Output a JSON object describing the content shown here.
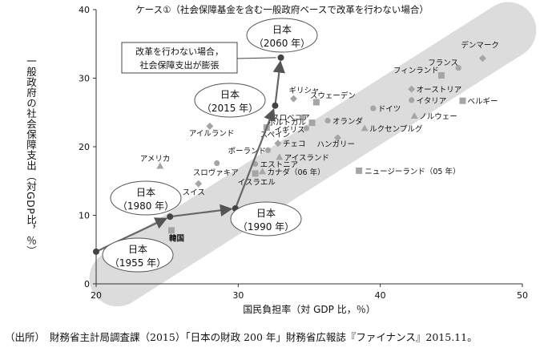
{
  "chart_data": {
    "type": "scatter",
    "title": "ケース①（社会保障基金を含む一般政府ベースで改革を行わない場合）",
    "xlabel": "国民負担率（対 GDP 比，％）",
    "ylabel": "一般政府の社会保障支出（対GDP比，％）",
    "xlim": [
      20,
      50
    ],
    "ylim": [
      0,
      40
    ],
    "x_ticks": [
      "20",
      "30",
      "40",
      "50"
    ],
    "y_ticks": [
      "0",
      "10",
      "20",
      "30",
      "40"
    ],
    "countries": [
      {
        "label": "デンマーク",
        "x": 47.2,
        "y": 32.9,
        "marker": "diamond"
      },
      {
        "label": "フランス",
        "x": 45.5,
        "y": 31.5,
        "marker": "circle"
      },
      {
        "label": "フィンランド",
        "x": 44.3,
        "y": 30.4,
        "marker": "square"
      },
      {
        "label": "オーストリア",
        "x": 42.2,
        "y": 28.4,
        "marker": "diamond"
      },
      {
        "label": "イタリア",
        "x": 42.2,
        "y": 26.8,
        "marker": "circle"
      },
      {
        "label": "ベルギー",
        "x": 45.8,
        "y": 26.7,
        "marker": "square"
      },
      {
        "label": "ノルウェー",
        "x": 42.4,
        "y": 24.5,
        "marker": "triangle"
      },
      {
        "label": "スウェーデン",
        "x": 35.5,
        "y": 26.5,
        "marker": "square"
      },
      {
        "label": "ドイツ",
        "x": 39.5,
        "y": 25.6,
        "marker": "circle"
      },
      {
        "label": "ギリシャ",
        "x": 33.9,
        "y": 27.0,
        "marker": "diamond"
      },
      {
        "label": "スロベニア",
        "x": 34.5,
        "y": 24.3,
        "marker": "circle"
      },
      {
        "label": "ポルトガル",
        "x": 35.2,
        "y": 23.5,
        "marker": "square"
      },
      {
        "label": "オランダ",
        "x": 36.3,
        "y": 23.8,
        "marker": "circle"
      },
      {
        "label": "イギリス",
        "x": 34.8,
        "y": 22.7,
        "marker": "circle"
      },
      {
        "label": "ルクセンブルグ",
        "x": 38.9,
        "y": 22.7,
        "marker": "triangle"
      },
      {
        "label": "スペイン",
        "x": 32.0,
        "y": 22.8,
        "marker": "square"
      },
      {
        "label": "ハンガリー",
        "x": 37.0,
        "y": 21.3,
        "marker": "diamond"
      },
      {
        "label": "チェコ",
        "x": 32.8,
        "y": 20.5,
        "marker": "diamond"
      },
      {
        "label": "アイルランド",
        "x": 28.0,
        "y": 23.0,
        "marker": "diamond"
      },
      {
        "label": "ポーランド",
        "x": 32.1,
        "y": 19.5,
        "marker": "circle"
      },
      {
        "label": "アイスランド",
        "x": 32.9,
        "y": 18.5,
        "marker": "triangle"
      },
      {
        "label": "エストニア",
        "x": 31.2,
        "y": 17.5,
        "marker": "circle"
      },
      {
        "label": "カナダ（06 年）",
        "x": 31.7,
        "y": 16.4,
        "marker": "triangle"
      },
      {
        "label": "イスラエル",
        "x": 31.2,
        "y": 16.1,
        "marker": "square"
      },
      {
        "label": "ニュージーランド（05 年）",
        "x": 38.5,
        "y": 16.5,
        "marker": "square"
      },
      {
        "label": "アメリカ",
        "x": 24.5,
        "y": 17.2,
        "marker": "triangle"
      },
      {
        "label": "スロヴァキア",
        "x": 28.5,
        "y": 17.6,
        "marker": "circle"
      },
      {
        "label": "スイス",
        "x": 27.2,
        "y": 14.6,
        "marker": "diamond"
      },
      {
        "label": "韓国",
        "x": 25.3,
        "y": 7.8,
        "marker": "square"
      }
    ],
    "japan_series": [
      {
        "year_label": "日本\n（1955 年）",
        "x": 20.0,
        "y": 4.7
      },
      {
        "year_label": "日本\n（1980 年）",
        "x": 25.2,
        "y": 9.8
      },
      {
        "year_label": "日本\n（1990 年）",
        "x": 29.8,
        "y": 11.0
      },
      {
        "year_label": "日本\n（2015 年）",
        "x": 32.6,
        "y": 26.0
      },
      {
        "year_label": "日本\n（2060 年）",
        "x": 33.0,
        "y": 33.0
      }
    ],
    "annotation": "改革を行わない場合，\n社会保障支出が膨張"
  },
  "source": {
    "prefix": "（出所）",
    "text": "財務省主計局調査課（2015）「日本の財政 200 年」財務省広報誌『ファイナンス』2015.11。"
  }
}
